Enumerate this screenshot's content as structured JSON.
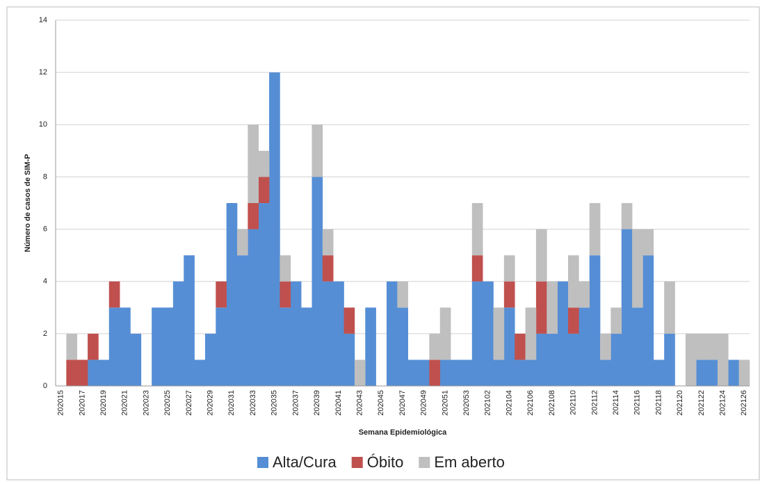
{
  "chart_data": {
    "type": "stacked-bar",
    "x_label": "Semana Epidemiológica",
    "y_label": "Número de casos de SIM-P",
    "categories": [
      "202015",
      null,
      "202017",
      null,
      "202019",
      null,
      "202021",
      null,
      "202023",
      null,
      "202025",
      null,
      "202027",
      null,
      "202029",
      null,
      "202031",
      null,
      "202033",
      null,
      "202035",
      null,
      "202037",
      null,
      "202039",
      null,
      "202041",
      null,
      "202043",
      null,
      "202045",
      null,
      "202047",
      null,
      "202049",
      null,
      "202051",
      null,
      "202053",
      null,
      "202102",
      null,
      "202104",
      null,
      "202106",
      null,
      "202108",
      null,
      "202110",
      null,
      "202112",
      null,
      "202114",
      null,
      "202116",
      null,
      "202118",
      null,
      "202120",
      null,
      "202122",
      null,
      "202124",
      null,
      "202126"
    ],
    "series": [
      {
        "name": "Alta/Cura",
        "color": "#558ed5",
        "values": [
          0,
          0,
          0,
          1,
          1,
          3,
          3,
          2,
          0,
          3,
          3,
          4,
          5,
          1,
          2,
          3,
          7,
          5,
          6,
          7,
          12,
          3,
          4,
          3,
          8,
          4,
          4,
          2,
          0,
          3,
          0,
          4,
          3,
          1,
          1,
          0,
          1,
          1,
          1,
          4,
          4,
          1,
          3,
          1,
          1,
          2,
          2,
          4,
          2,
          3,
          5,
          1,
          2,
          6,
          3,
          5,
          1,
          2,
          0,
          0,
          1,
          1,
          0,
          1,
          0
        ]
      },
      {
        "name": "Óbito",
        "color": "#c0504d",
        "values": [
          0,
          1,
          1,
          1,
          0,
          1,
          0,
          0,
          0,
          0,
          0,
          0,
          0,
          0,
          0,
          1,
          0,
          0,
          1,
          1,
          0,
          1,
          0,
          0,
          0,
          1,
          0,
          1,
          0,
          0,
          0,
          0,
          0,
          0,
          0,
          1,
          0,
          0,
          0,
          1,
          0,
          0,
          1,
          1,
          0,
          2,
          0,
          0,
          1,
          0,
          0,
          0,
          0,
          0,
          0,
          0,
          0,
          0,
          0,
          0,
          0,
          0,
          0,
          0,
          0
        ]
      },
      {
        "name": "Em aberto",
        "color": "#bfbfbf",
        "values": [
          0,
          1,
          0,
          0,
          0,
          0,
          0,
          0,
          0,
          0,
          0,
          0,
          0,
          0,
          0,
          0,
          0,
          1,
          3,
          1,
          0,
          1,
          0,
          0,
          2,
          1,
          0,
          0,
          1,
          0,
          0,
          0,
          1,
          0,
          0,
          1,
          2,
          0,
          0,
          2,
          0,
          2,
          1,
          0,
          2,
          2,
          2,
          0,
          2,
          1,
          2,
          1,
          1,
          1,
          3,
          1,
          0,
          2,
          0,
          2,
          1,
          1,
          2,
          0,
          1
        ]
      }
    ],
    "ylim": [
      0,
      14
    ],
    "yticks": [
      0,
      2,
      4,
      6,
      8,
      10,
      12,
      14
    ],
    "grid": true,
    "legend": "bottom"
  }
}
